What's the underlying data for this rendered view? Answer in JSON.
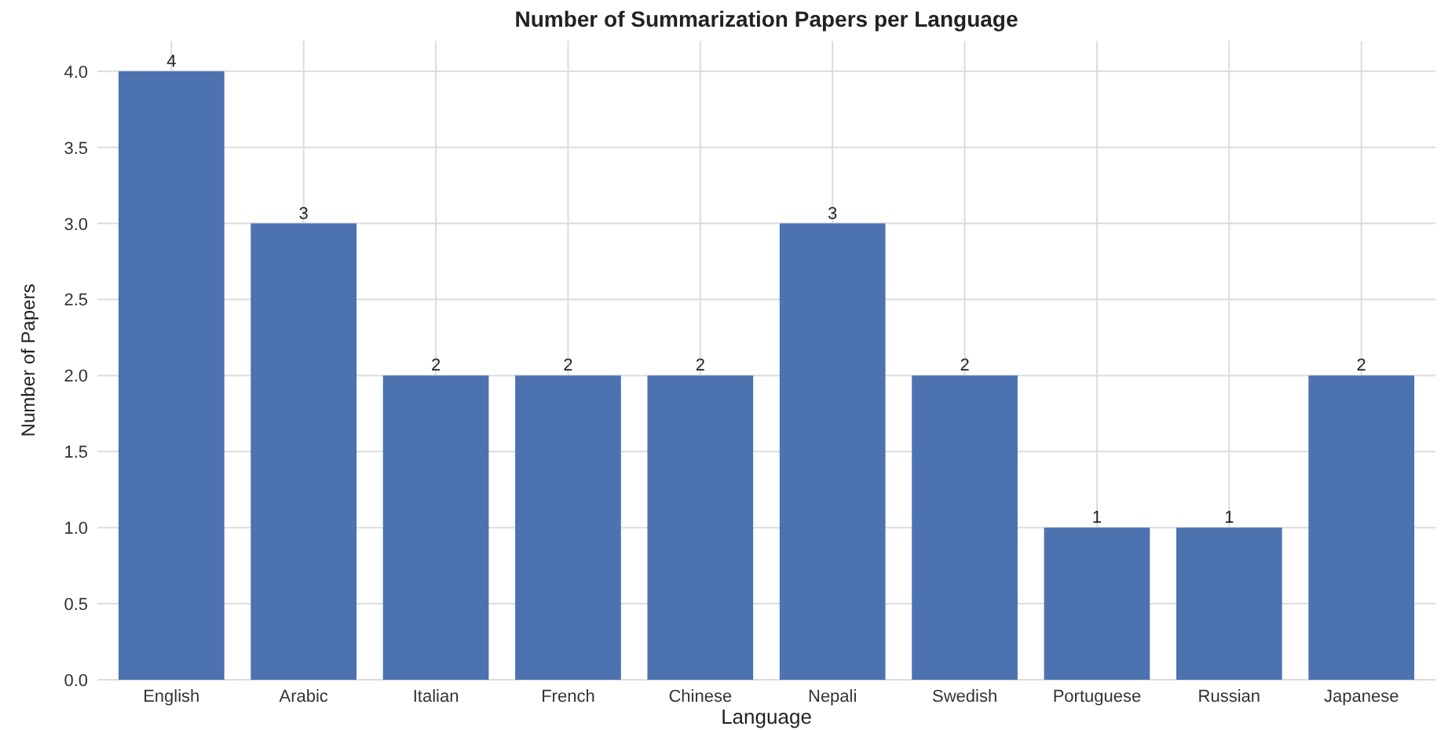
{
  "chart_data": {
    "type": "bar",
    "title": "Number of Summarization Papers per Language",
    "xlabel": "Language",
    "ylabel": "Number of Papers",
    "categories": [
      "English",
      "Arabic",
      "Italian",
      "French",
      "Chinese",
      "Nepali",
      "Swedish",
      "Portuguese",
      "Russian",
      "Japanese"
    ],
    "values": [
      4,
      3,
      2,
      2,
      2,
      3,
      2,
      1,
      1,
      2
    ],
    "color": "#4c72b0",
    "data_labels": true,
    "ylim": [
      0,
      4.2
    ],
    "yticks": [
      {
        "value": 0,
        "label": "0.0"
      },
      {
        "value": 0.5,
        "label": "0.5"
      },
      {
        "value": 1,
        "label": "1.0"
      },
      {
        "value": 1.5,
        "label": "1.5"
      },
      {
        "value": 2,
        "label": "2.0"
      },
      {
        "value": 2.5,
        "label": "2.5"
      },
      {
        "value": 3,
        "label": "3.0"
      },
      {
        "value": 3.5,
        "label": "3.5"
      },
      {
        "value": 4,
        "label": "4.0"
      }
    ],
    "grid": true
  }
}
